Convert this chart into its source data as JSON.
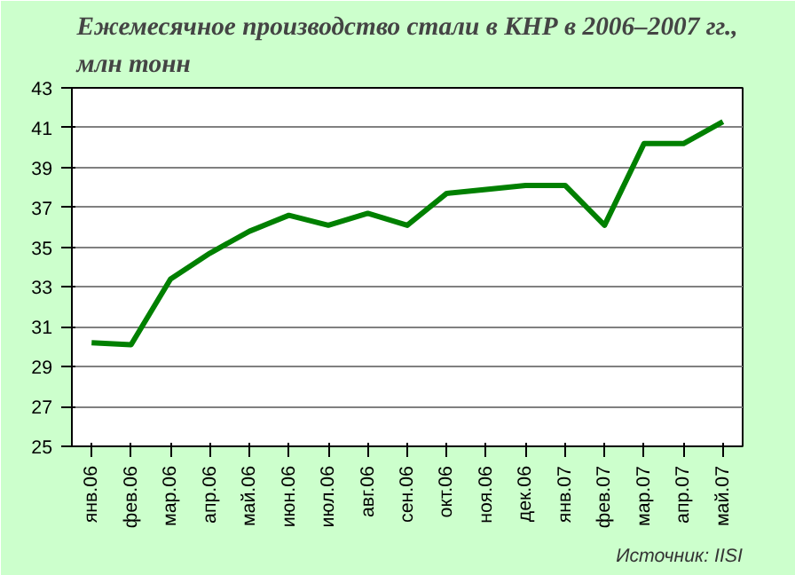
{
  "chart_data": {
    "type": "line",
    "title": "Ежемесячное производство стали в КНР в 2006–2007 гг., млн тонн",
    "categories": [
      "янв.06",
      "фев.06",
      "мар.06",
      "апр.06",
      "май.06",
      "июн.06",
      "июл.06",
      "авг.06",
      "сен.06",
      "окт.06",
      "ноя.06",
      "дек.06",
      "янв.07",
      "фев.07",
      "мар.07",
      "апр.07",
      "май.07"
    ],
    "series": [
      {
        "color": "#008000",
        "values": [
          30.2,
          30.1,
          33.4,
          34.7,
          35.8,
          36.6,
          36.1,
          36.7,
          36.1,
          37.7,
          37.9,
          38.1,
          38.1,
          36.1,
          40.2,
          40.2,
          41.3
        ]
      }
    ],
    "ylim": [
      25,
      43
    ],
    "yticks": [
      25,
      27,
      29,
      31,
      33,
      35,
      37,
      39,
      41,
      43
    ],
    "grid": "y",
    "marker": "none",
    "line_style": "solid",
    "annotations": [
      "Источник: IISI"
    ]
  }
}
